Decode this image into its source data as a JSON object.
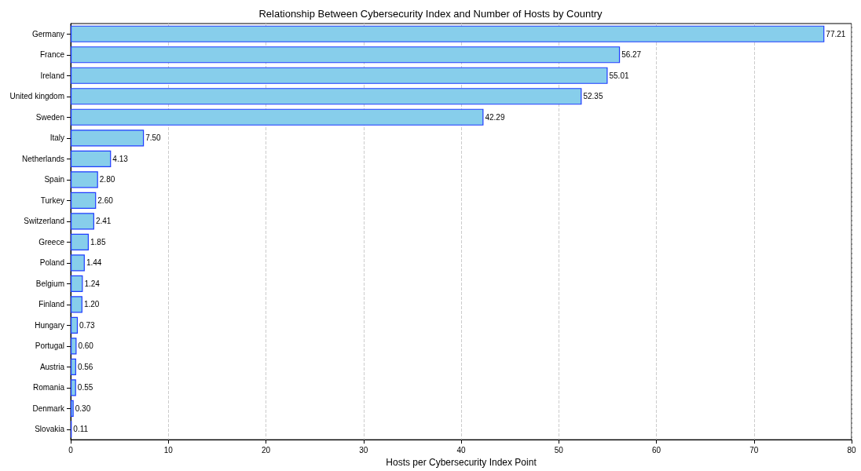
{
  "chart_data": {
    "type": "bar",
    "orientation": "horizontal",
    "title": "Relationship Between Cybersecurity Index and Number of Hosts by Country",
    "xlabel": "Hosts per Cybersecurity Index Point",
    "categories": [
      "Germany",
      "France",
      "Ireland",
      "United kingdom",
      "Sweden",
      "Italy",
      "Netherlands",
      "Spain",
      "Turkey",
      "Switzerland",
      "Greece",
      "Poland",
      "Belgium",
      "Finland",
      "Hungary",
      "Portugal",
      "Austria",
      "Romania",
      "Denmark",
      "Slovakia"
    ],
    "values": [
      77.21,
      56.27,
      55.01,
      52.35,
      42.29,
      7.5,
      4.13,
      2.8,
      2.6,
      2.41,
      1.85,
      1.44,
      1.24,
      1.2,
      0.73,
      0.6,
      0.56,
      0.55,
      0.3,
      0.11
    ],
    "value_labels": [
      "77.21",
      "56.27",
      "55.01",
      "52.35",
      "42.29",
      "7.50",
      "4.13",
      "2.80",
      "2.60",
      "2.41",
      "1.85",
      "1.44",
      "1.24",
      "1.20",
      "0.73",
      "0.60",
      "0.56",
      "0.55",
      "0.30",
      "0.11"
    ],
    "color": "#87ceeb",
    "xlim": [
      0,
      80
    ],
    "xticks": [
      0,
      10,
      20,
      30,
      40,
      50,
      60,
      70,
      80
    ],
    "grid": "x"
  }
}
